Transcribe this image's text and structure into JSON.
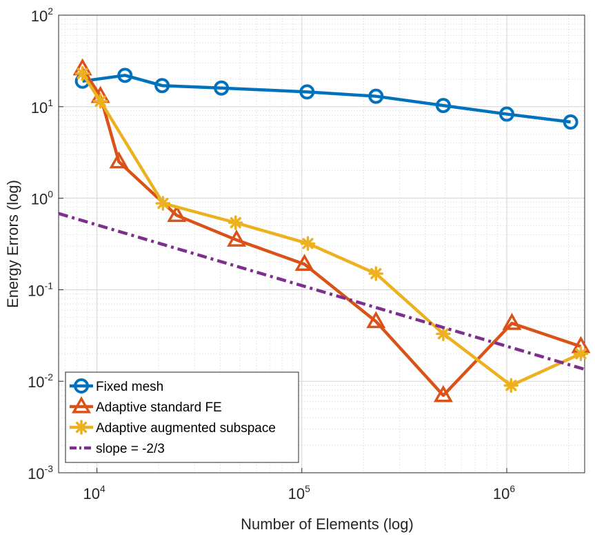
{
  "chart_data": {
    "type": "line",
    "title": "",
    "xlabel": "Number of Elements (log)",
    "ylabel": "Energy Errors (log)",
    "xscale": "log",
    "yscale": "log",
    "xlim": [
      6500,
      2400000
    ],
    "ylim": [
      0.001,
      100
    ],
    "grid": true,
    "legend_position": "bottom-left",
    "x_ticks": [
      {
        "value": 10000,
        "base": "10",
        "exp": "4"
      },
      {
        "value": 100000,
        "base": "10",
        "exp": "5"
      },
      {
        "value": 1000000,
        "base": "10",
        "exp": "6"
      }
    ],
    "y_ticks": [
      {
        "value": 0.001,
        "base": "10",
        "exp": "-3"
      },
      {
        "value": 0.01,
        "base": "10",
        "exp": "-2"
      },
      {
        "value": 0.1,
        "base": "10",
        "exp": "-1"
      },
      {
        "value": 1,
        "base": "10",
        "exp": "0"
      },
      {
        "value": 10,
        "base": "10",
        "exp": "1"
      },
      {
        "value": 100,
        "base": "10",
        "exp": "2"
      }
    ],
    "series": [
      {
        "name": "Fixed mesh",
        "color": "#0072BD",
        "marker": "circle",
        "x": [
          8500,
          13700,
          20800,
          40500,
          106000,
          230000,
          490000,
          1000000,
          2050000
        ],
        "y": [
          19,
          22,
          17,
          16,
          14.5,
          13,
          10.3,
          8.3,
          6.8
        ]
      },
      {
        "name": "Adaptive standard FE",
        "color": "#D95319",
        "marker": "triangle",
        "x": [
          8500,
          10400,
          12800,
          24500,
          48000,
          103000,
          230000,
          490000,
          1060000,
          2300000
        ],
        "y": [
          26,
          13,
          2.5,
          0.65,
          0.35,
          0.19,
          0.045,
          0.007,
          0.043,
          0.024
        ]
      },
      {
        "name": "Adaptive augmented subspace",
        "color": "#EDB120",
        "marker": "asterisk",
        "x": [
          8500,
          10400,
          21000,
          47500,
          107000,
          230000,
          490000,
          1050000,
          2300000
        ],
        "y": [
          23,
          11.5,
          0.88,
          0.54,
          0.32,
          0.15,
          0.033,
          0.009,
          0.02
        ]
      },
      {
        "name": "slope = -2/3",
        "color": "#7E2F8E",
        "marker": "none",
        "dash": "dashdot",
        "x": [
          6500,
          2400000
        ],
        "y": [
          0.68,
          0.0135
        ]
      }
    ]
  }
}
